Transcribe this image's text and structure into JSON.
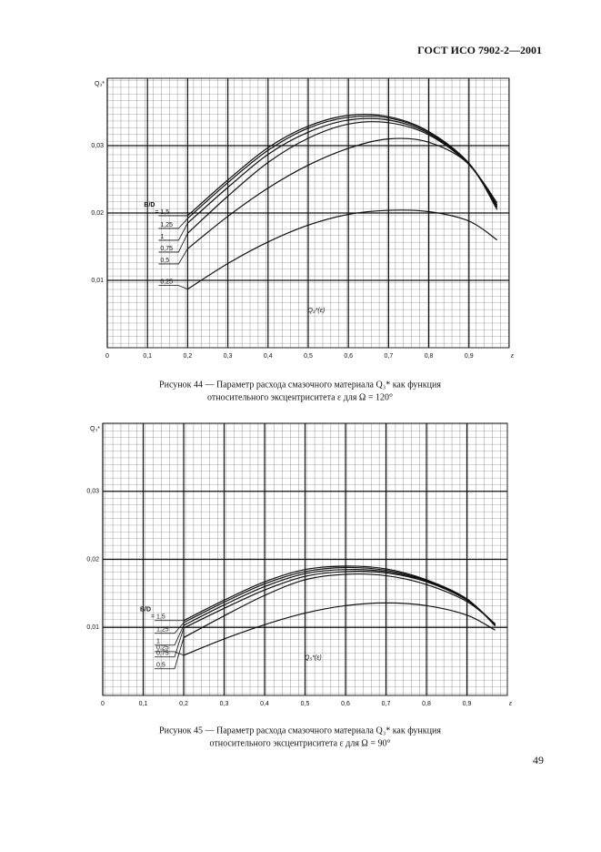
{
  "header": "ГОСТ ИСО 7902-2—2001",
  "page_number": "49",
  "chart_data": [
    {
      "type": "line",
      "y_label": "Q₃*",
      "x_label": "ε",
      "annotation": "Q₃*(ε)",
      "legend_title": "B/D",
      "caption": [
        "Рисунок 44 — Параметр расхода смазочного материала Q₃* как функция",
        "относительного эксцентриситета ε для Ω = 120°"
      ],
      "xlim": [
        0,
        1
      ],
      "ylim": [
        0,
        0.04
      ],
      "xticks": [
        0,
        {
          "value": 0.1,
          "label": "0,1"
        },
        {
          "value": 0.2,
          "label": "0,2"
        },
        {
          "value": 0.3,
          "label": "0,3"
        },
        {
          "value": 0.4,
          "label": "0,4"
        },
        {
          "value": 0.5,
          "label": "0,5"
        },
        {
          "value": 0.6,
          "label": "0,6"
        },
        {
          "value": 0.7,
          "label": "0,7"
        },
        {
          "value": 0.8,
          "label": "0,8"
        },
        {
          "value": 0.9,
          "label": "0,9"
        }
      ],
      "yticks": [
        {
          "value": 0.01,
          "label": "0,01"
        },
        {
          "value": 0.02,
          "label": "0,02"
        },
        {
          "value": 0.03,
          "label": "0,03"
        }
      ],
      "grid": true,
      "x": [
        0.2,
        0.3,
        0.4,
        0.5,
        0.6,
        0.7,
        0.8,
        0.9,
        0.97
      ],
      "series": [
        {
          "name": "= 1,5",
          "color": "#111",
          "values": [
            0.0196,
            0.0249,
            0.0297,
            0.0329,
            0.0345,
            0.0343,
            0.0321,
            0.0274,
            0.0208
          ]
        },
        {
          "name": "1,25",
          "color": "#111",
          "values": [
            0.0192,
            0.0245,
            0.0293,
            0.0326,
            0.0342,
            0.0341,
            0.032,
            0.0273,
            0.021
          ]
        },
        {
          "name": "1",
          "color": "#111",
          "values": [
            0.0185,
            0.0238,
            0.0287,
            0.032,
            0.0338,
            0.0338,
            0.0318,
            0.0272,
            0.0212
          ]
        },
        {
          "name": "0,75",
          "color": "#111",
          "values": [
            0.017,
            0.0225,
            0.0275,
            0.0311,
            0.0332,
            0.0334,
            0.0316,
            0.0272,
            0.0215
          ]
        },
        {
          "name": "0,5",
          "color": "#111",
          "values": [
            0.0147,
            0.0195,
            0.0237,
            0.0271,
            0.0296,
            0.031,
            0.0305,
            0.0272,
            0.0205
          ]
        },
        {
          "name": "0,25",
          "color": "#111",
          "values": [
            0.0087,
            0.0125,
            0.0157,
            0.0182,
            0.0198,
            0.0204,
            0.0202,
            0.0188,
            0.016
          ]
        }
      ]
    },
    {
      "type": "line",
      "y_label": "Q₃*",
      "x_label": "ε",
      "annotation": "Q₃*(ε)",
      "legend_title": "B/D",
      "caption": [
        "Рисунок 45 — Параметр расхода смазочного материала Q₃* как функция",
        "относительного эксцентриситета ε для Ω = 90°"
      ],
      "xlim": [
        0,
        1
      ],
      "ylim": [
        0,
        0.04
      ],
      "xticks": [
        0,
        {
          "value": 0.1,
          "label": "0,1"
        },
        {
          "value": 0.2,
          "label": "0,2"
        },
        {
          "value": 0.3,
          "label": "0,3"
        },
        {
          "value": 0.4,
          "label": "0,4"
        },
        {
          "value": 0.5,
          "label": "0,5"
        },
        {
          "value": 0.6,
          "label": "0,6"
        },
        {
          "value": 0.7,
          "label": "0,7"
        },
        {
          "value": 0.8,
          "label": "0,8"
        },
        {
          "value": 0.9,
          "label": "0,9"
        }
      ],
      "yticks": [
        {
          "value": 0.01,
          "label": "0,01"
        },
        {
          "value": 0.02,
          "label": "0,02"
        },
        {
          "value": 0.03,
          "label": "0,03"
        }
      ],
      "grid": true,
      "x": [
        0.2,
        0.3,
        0.4,
        0.5,
        0.6,
        0.7,
        0.8,
        0.9,
        0.97
      ],
      "series": [
        {
          "name": "= 1,5",
          "color": "#111",
          "values": [
            0.011,
            0.014,
            0.0167,
            0.0185,
            0.019,
            0.0186,
            0.017,
            0.0142,
            0.0102
          ]
        },
        {
          "name": "1,25",
          "color": "#111",
          "values": [
            0.0107,
            0.0137,
            0.0164,
            0.0182,
            0.0188,
            0.0184,
            0.0169,
            0.0141,
            0.0103
          ]
        },
        {
          "name": "1",
          "color": "#111",
          "values": [
            0.0103,
            0.0133,
            0.016,
            0.0179,
            0.0185,
            0.0182,
            0.0168,
            0.0141,
            0.0104
          ]
        },
        {
          "name": "0,75",
          "color": "#111",
          "values": [
            0.0099,
            0.0128,
            0.0155,
            0.0175,
            0.0182,
            0.018,
            0.0167,
            0.014,
            0.0105
          ]
        },
        {
          "name": "0,5",
          "color": "#111",
          "values": [
            0.0085,
            0.0117,
            0.0147,
            0.017,
            0.0178,
            0.0176,
            0.0163,
            0.0138,
            0.0105
          ]
        },
        {
          "name": "0,25",
          "color": "#111",
          "values": [
            0.0059,
            0.0083,
            0.0104,
            0.0121,
            0.0132,
            0.0136,
            0.0132,
            0.0118,
            0.0096
          ]
        }
      ]
    }
  ]
}
